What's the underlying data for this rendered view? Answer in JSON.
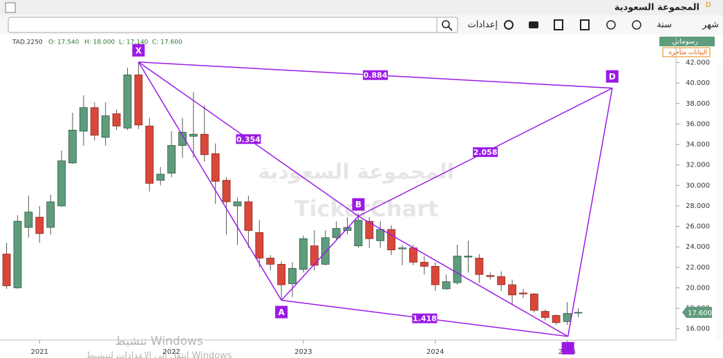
{
  "ui": {
    "title": "المجموعة السعودية",
    "title_flag": "D",
    "toolbar": {
      "month": "شهر",
      "year": "سنة",
      "settings": "إعدادات"
    },
    "info": {
      "symbol": "TAD.2250",
      "o": "O: 17.540",
      "h": "H: 18.000",
      "l": "L: 17.140",
      "c": "C: 17.600"
    },
    "badge": "رسوماتي",
    "delayed": "البيانات متأخرة",
    "watermark": {
      "name": "المجموعة السعودية",
      "brand": "TickerChart"
    },
    "windows": {
      "line1": "تنشيط Windows",
      "line2": "انتقل إلى الإعدادات لتنشيط Windows"
    }
  },
  "chart_data": {
    "type": "candlestick",
    "categories": [
      null,
      null,
      null,
      null,
      null,
      null,
      null,
      null,
      null,
      null,
      null,
      null,
      null,
      null,
      null,
      null,
      null,
      null,
      null,
      null,
      null,
      null,
      null,
      null,
      null,
      null,
      null,
      null,
      null,
      null,
      null,
      null,
      null,
      null,
      null,
      null,
      null,
      null,
      null,
      null,
      null,
      null,
      null,
      null,
      null,
      null,
      null,
      null,
      null,
      null,
      null,
      null,
      null
    ],
    "open": [
      23.3,
      20.0,
      25.9,
      26.9,
      25.9,
      28.0,
      32.2,
      35.3,
      37.6,
      34.7,
      37.0,
      35.6,
      40.8,
      35.8,
      30.5,
      31.2,
      33.9,
      34.8,
      35.0,
      33.1,
      30.5,
      28.0,
      28.4,
      25.4,
      22.9,
      22.3,
      20.4,
      21.8,
      24.1,
      22.3,
      24.9,
      25.6,
      24.1,
      26.5,
      24.6,
      25.7,
      23.8,
      23.9,
      22.5,
      22.1,
      19.9,
      20.5,
      23.0,
      22.9,
      21.2,
      21.1,
      20.3,
      19.5,
      19.4,
      17.7,
      17.3,
      16.7,
      17.54
    ],
    "high": [
      24.4,
      27.1,
      29.0,
      28.0,
      29.1,
      33.4,
      37.1,
      38.8,
      38.1,
      38.1,
      37.4,
      41.5,
      42.05,
      36.6,
      31.8,
      35.3,
      36.6,
      39.1,
      37.8,
      34.1,
      30.8,
      28.8,
      29.0,
      26.6,
      23.2,
      22.6,
      22.5,
      25.1,
      25.6,
      25.6,
      26.5,
      26.9,
      27.3,
      26.9,
      26.5,
      26.1,
      24.2,
      24.2,
      23.1,
      22.5,
      21.3,
      24.2,
      24.6,
      23.3,
      21.5,
      21.6,
      20.8,
      19.9,
      19.5,
      17.9,
      17.4,
      18.6,
      18.0
    ],
    "low": [
      19.9,
      19.9,
      24.9,
      24.4,
      25.2,
      27.9,
      32.1,
      33.9,
      34.4,
      33.9,
      35.4,
      35.4,
      35.5,
      29.4,
      30.0,
      30.8,
      32.7,
      32.7,
      32.3,
      28.2,
      25.2,
      24.2,
      23.9,
      22.0,
      21.7,
      18.8,
      19.1,
      21.5,
      21.7,
      22.2,
      24.6,
      25.2,
      23.9,
      23.9,
      23.9,
      23.2,
      22.2,
      22.2,
      21.3,
      19.7,
      19.8,
      20.3,
      21.5,
      20.5,
      20.8,
      19.7,
      18.4,
      19.0,
      17.6,
      16.8,
      16.4,
      16.4,
      17.14
    ],
    "close": [
      20.2,
      26.5,
      27.4,
      25.3,
      28.4,
      32.4,
      35.4,
      37.6,
      34.9,
      36.8,
      35.8,
      40.8,
      35.9,
      30.2,
      31.1,
      33.9,
      35.2,
      35.0,
      33.0,
      30.4,
      28.4,
      28.4,
      25.6,
      22.9,
      22.3,
      20.3,
      21.9,
      24.8,
      22.2,
      24.9,
      25.8,
      25.9,
      26.6,
      24.8,
      25.7,
      23.7,
      23.9,
      22.5,
      22.1,
      20.3,
      20.6,
      23.1,
      23.1,
      21.3,
      21.1,
      20.3,
      19.3,
      19.4,
      17.8,
      17.1,
      16.6,
      17.5,
      17.6
    ],
    "up_color": "#5e9c7c",
    "down_color": "#d9473b",
    "xlim": [
      -0.6,
      60.9
    ],
    "xticks": [
      {
        "value": 3,
        "label": "2021"
      },
      {
        "value": 15,
        "label": "2022"
      },
      {
        "value": 27,
        "label": "2023"
      },
      {
        "value": 39,
        "label": "2024"
      },
      {
        "value": 51,
        "label": "2025"
      }
    ],
    "ylim": [
      14.9,
      44.6
    ],
    "yticks": [
      {
        "value": 16,
        "label": "16.000"
      },
      {
        "value": 18,
        "label": "18.000"
      },
      {
        "value": 20,
        "label": "20.000"
      },
      {
        "value": 22,
        "label": "22.000"
      },
      {
        "value": 24,
        "label": "24.000"
      },
      {
        "value": 26,
        "label": "26.000"
      },
      {
        "value": 28,
        "label": "28.000"
      },
      {
        "value": 30,
        "label": "30.000"
      },
      {
        "value": 32,
        "label": "32.000"
      },
      {
        "value": 34,
        "label": "34.000"
      },
      {
        "value": 36,
        "label": "36.000"
      },
      {
        "value": 38,
        "label": "38.000"
      },
      {
        "value": 40,
        "label": "40.000"
      },
      {
        "value": 42,
        "label": "42.000"
      }
    ],
    "last_price": {
      "value": 17.6,
      "label": "17.600"
    },
    "pattern": {
      "color": "#9b19e6",
      "points": [
        {
          "label": "X",
          "x": 12,
          "y": 42.05
        },
        {
          "label": "A",
          "x": 25,
          "y": 18.78
        },
        {
          "label": "B",
          "x": 32,
          "y": 27.0
        },
        {
          "x": 51.07,
          "y": 15.25
        },
        {
          "label": "D",
          "x": 55.1,
          "y": 39.5
        }
      ],
      "ratios": [
        {
          "from": 0,
          "to": 2,
          "label": "0.354"
        },
        {
          "from": 0,
          "to": 4,
          "label": "0.884"
        },
        {
          "from": 2,
          "to": 4,
          "label": "2.058"
        },
        {
          "from": 1,
          "to": 3,
          "label": "1.418"
        }
      ]
    }
  }
}
